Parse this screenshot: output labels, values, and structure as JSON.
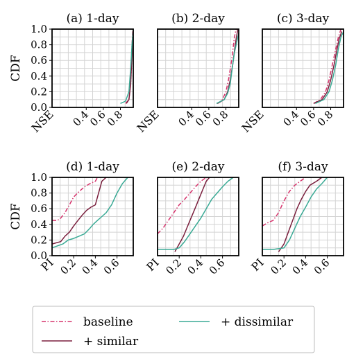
{
  "legend": {
    "entries": [
      {
        "key": "baseline",
        "label": "baseline"
      },
      {
        "key": "similar",
        "label": "+ similar"
      },
      {
        "key": "dissimilar",
        "label": "+ dissimilar"
      }
    ]
  },
  "series_styles": {
    "baseline": {
      "color": "#d6336c",
      "dash": "dashdot"
    },
    "similar": {
      "color": "#7a1f3d",
      "dash": "solid"
    },
    "dissimilar": {
      "color": "#3aaa95",
      "dash": "solid"
    }
  },
  "chart_data": [
    {
      "id": "nse-1day",
      "type": "line",
      "title": "(a) 1-day",
      "xlabel": "NSE",
      "ylabel": "CDF",
      "xlim": [
        0.0,
        0.95
      ],
      "ylim": [
        0.0,
        1.0
      ],
      "xticks": [
        "0.4",
        "0.6",
        "0.8"
      ],
      "yticks": [
        "0.0",
        "0.2",
        "0.4",
        "0.6",
        "0.8",
        "1.0"
      ],
      "grid": true,
      "series": [
        {
          "key": "baseline",
          "x": [
            0.86,
            0.9,
            0.92,
            0.93,
            0.935,
            0.945
          ],
          "y": [
            0.05,
            0.1,
            0.3,
            0.55,
            0.8,
            1.0
          ]
        },
        {
          "key": "similar",
          "x": [
            0.87,
            0.9,
            0.92,
            0.93,
            0.94,
            0.95
          ],
          "y": [
            0.05,
            0.1,
            0.3,
            0.55,
            0.8,
            1.0
          ]
        },
        {
          "key": "dissimilar",
          "x": [
            0.8,
            0.86,
            0.9,
            0.92,
            0.935,
            0.95
          ],
          "y": [
            0.05,
            0.08,
            0.2,
            0.5,
            0.8,
            1.0
          ]
        }
      ]
    },
    {
      "id": "nse-2day",
      "type": "line",
      "title": "(b) 2-day",
      "xlabel": "NSE",
      "xlim": [
        0.0,
        0.95
      ],
      "ylim": [
        0.0,
        1.0
      ],
      "xticks": [
        "0.4",
        "0.6",
        "0.8"
      ],
      "grid": true,
      "series": [
        {
          "key": "baseline",
          "x": [
            0.7,
            0.75,
            0.8,
            0.83,
            0.86,
            0.88,
            0.9,
            0.92
          ],
          "y": [
            0.05,
            0.08,
            0.2,
            0.35,
            0.55,
            0.72,
            0.9,
            1.0
          ]
        },
        {
          "key": "similar",
          "x": [
            0.7,
            0.78,
            0.82,
            0.85,
            0.88,
            0.9,
            0.92,
            0.94
          ],
          "y": [
            0.05,
            0.1,
            0.2,
            0.35,
            0.55,
            0.72,
            0.88,
            1.0
          ]
        },
        {
          "key": "dissimilar",
          "x": [
            0.69,
            0.78,
            0.82,
            0.85,
            0.88,
            0.9,
            0.93,
            0.95
          ],
          "y": [
            0.05,
            0.1,
            0.18,
            0.3,
            0.55,
            0.7,
            0.85,
            0.95
          ]
        }
      ]
    },
    {
      "id": "nse-3day",
      "type": "line",
      "title": "(c) 3-day",
      "xlabel": "NSE",
      "xlim": [
        0.0,
        0.95
      ],
      "ylim": [
        0.0,
        1.0
      ],
      "xticks": [
        "0.4",
        "0.6",
        "0.8"
      ],
      "grid": true,
      "series": [
        {
          "key": "baseline",
          "x": [
            0.6,
            0.68,
            0.74,
            0.78,
            0.82,
            0.86,
            0.89,
            0.92
          ],
          "y": [
            0.05,
            0.1,
            0.2,
            0.35,
            0.55,
            0.75,
            0.9,
            1.0
          ]
        },
        {
          "key": "similar",
          "x": [
            0.6,
            0.7,
            0.76,
            0.8,
            0.84,
            0.87,
            0.9,
            0.93
          ],
          "y": [
            0.05,
            0.1,
            0.2,
            0.35,
            0.55,
            0.72,
            0.88,
            0.97
          ]
        },
        {
          "key": "dissimilar",
          "x": [
            0.62,
            0.72,
            0.78,
            0.82,
            0.86,
            0.89,
            0.92,
            0.95
          ],
          "y": [
            0.05,
            0.1,
            0.2,
            0.35,
            0.55,
            0.75,
            0.9,
            0.97
          ]
        }
      ]
    },
    {
      "id": "pi-1day",
      "type": "line",
      "title": "(d) 1-day",
      "xlabel": "PI",
      "ylabel": "CDF",
      "xlim": [
        0.0,
        0.75
      ],
      "ylim": [
        0.0,
        1.0
      ],
      "xticks": [
        "0.2",
        "0.4",
        "0.6"
      ],
      "yticks": [
        "0.0",
        "0.2",
        "0.4",
        "0.6",
        "0.8",
        "1.0"
      ],
      "grid": true,
      "series": [
        {
          "key": "baseline",
          "x": [
            0.0,
            0.05,
            0.08,
            0.12,
            0.16,
            0.2,
            0.25,
            0.3,
            0.35,
            0.4,
            0.42
          ],
          "y": [
            0.45,
            0.45,
            0.48,
            0.55,
            0.65,
            0.75,
            0.82,
            0.88,
            0.92,
            0.95,
            1.0
          ]
        },
        {
          "key": "similar",
          "x": [
            0.0,
            0.08,
            0.12,
            0.16,
            0.2,
            0.24,
            0.28,
            0.32,
            0.36,
            0.4,
            0.44,
            0.46,
            0.5
          ],
          "y": [
            0.15,
            0.18,
            0.25,
            0.3,
            0.38,
            0.45,
            0.52,
            0.58,
            0.62,
            0.65,
            0.85,
            0.95,
            1.0
          ]
        },
        {
          "key": "dissimilar",
          "x": [
            0.0,
            0.1,
            0.15,
            0.2,
            0.25,
            0.3,
            0.35,
            0.38,
            0.42,
            0.46,
            0.5,
            0.55,
            0.6,
            0.65,
            0.7
          ],
          "y": [
            0.1,
            0.15,
            0.2,
            0.22,
            0.25,
            0.28,
            0.35,
            0.4,
            0.45,
            0.5,
            0.55,
            0.65,
            0.8,
            0.92,
            1.0
          ]
        }
      ]
    },
    {
      "id": "pi-2day",
      "type": "line",
      "title": "(e) 2-day",
      "xlabel": "PI",
      "xlim": [
        0.0,
        0.75
      ],
      "ylim": [
        0.0,
        1.0
      ],
      "xticks": [
        "0.2",
        "0.4",
        "0.6"
      ],
      "grid": true,
      "series": [
        {
          "key": "baseline",
          "x": [
            0.0,
            0.05,
            0.1,
            0.15,
            0.2,
            0.25,
            0.3,
            0.35,
            0.4,
            0.45
          ],
          "y": [
            0.28,
            0.35,
            0.45,
            0.55,
            0.65,
            0.72,
            0.8,
            0.88,
            0.95,
            1.0
          ]
        },
        {
          "key": "similar",
          "x": [
            0.16,
            0.2,
            0.24,
            0.27,
            0.3,
            0.33,
            0.36,
            0.39,
            0.42,
            0.45,
            0.48
          ],
          "y": [
            0.05,
            0.15,
            0.25,
            0.35,
            0.45,
            0.55,
            0.65,
            0.75,
            0.85,
            0.95,
            1.0
          ]
        },
        {
          "key": "dissimilar",
          "x": [
            0.0,
            0.15,
            0.2,
            0.25,
            0.3,
            0.35,
            0.4,
            0.45,
            0.5,
            0.55,
            0.6,
            0.65,
            0.7
          ],
          "y": [
            0.08,
            0.08,
            0.1,
            0.18,
            0.28,
            0.38,
            0.48,
            0.6,
            0.72,
            0.8,
            0.88,
            0.95,
            1.0
          ]
        }
      ]
    },
    {
      "id": "pi-3day",
      "type": "line",
      "title": "(f) 3-day",
      "xlabel": "PI",
      "xlim": [
        0.0,
        0.75
      ],
      "ylim": [
        0.0,
        1.0
      ],
      "xticks": [
        "0.2",
        "0.4",
        "0.6"
      ],
      "grid": true,
      "series": [
        {
          "key": "baseline",
          "x": [
            0.0,
            0.05,
            0.1,
            0.15,
            0.2,
            0.25,
            0.3,
            0.35,
            0.4
          ],
          "y": [
            0.38,
            0.42,
            0.45,
            0.55,
            0.7,
            0.82,
            0.9,
            0.95,
            1.0
          ]
        },
        {
          "key": "similar",
          "x": [
            0.15,
            0.2,
            0.24,
            0.28,
            0.32,
            0.36,
            0.4,
            0.44,
            0.5,
            0.55
          ],
          "y": [
            0.05,
            0.15,
            0.3,
            0.45,
            0.6,
            0.72,
            0.82,
            0.9,
            0.95,
            1.0
          ]
        },
        {
          "key": "dissimilar",
          "x": [
            0.0,
            0.1,
            0.2,
            0.25,
            0.3,
            0.35,
            0.4,
            0.45,
            0.5,
            0.55,
            0.6
          ],
          "y": [
            0.08,
            0.08,
            0.1,
            0.2,
            0.35,
            0.5,
            0.62,
            0.75,
            0.85,
            0.92,
            1.0
          ]
        }
      ]
    }
  ]
}
